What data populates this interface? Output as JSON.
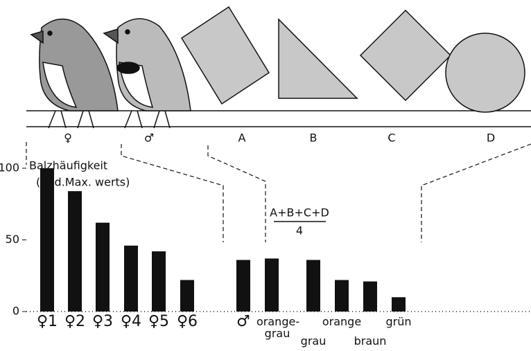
{
  "chart_data": {
    "type": "bar",
    "stimulus_labels": [
      "♀",
      "♂",
      "A",
      "B",
      "C",
      "D"
    ],
    "y_label": [
      "Balzhäufigkeit",
      "(% d.Max. werts)"
    ],
    "formula": {
      "numerator": "A+B+C+D",
      "denominator": "4"
    },
    "categories": [
      "♀1",
      "♀2",
      "♀3",
      "♀4",
      "♀5",
      "♀6",
      "♂",
      "orange- grau",
      "grau",
      "orange",
      "braun",
      "grün"
    ],
    "values": [
      100,
      84,
      62,
      46,
      42,
      22,
      36,
      37,
      36,
      22,
      21,
      10
    ],
    "color": "#111111",
    "ylim": [
      0,
      100
    ],
    "yticks": [
      0,
      50,
      100
    ]
  }
}
